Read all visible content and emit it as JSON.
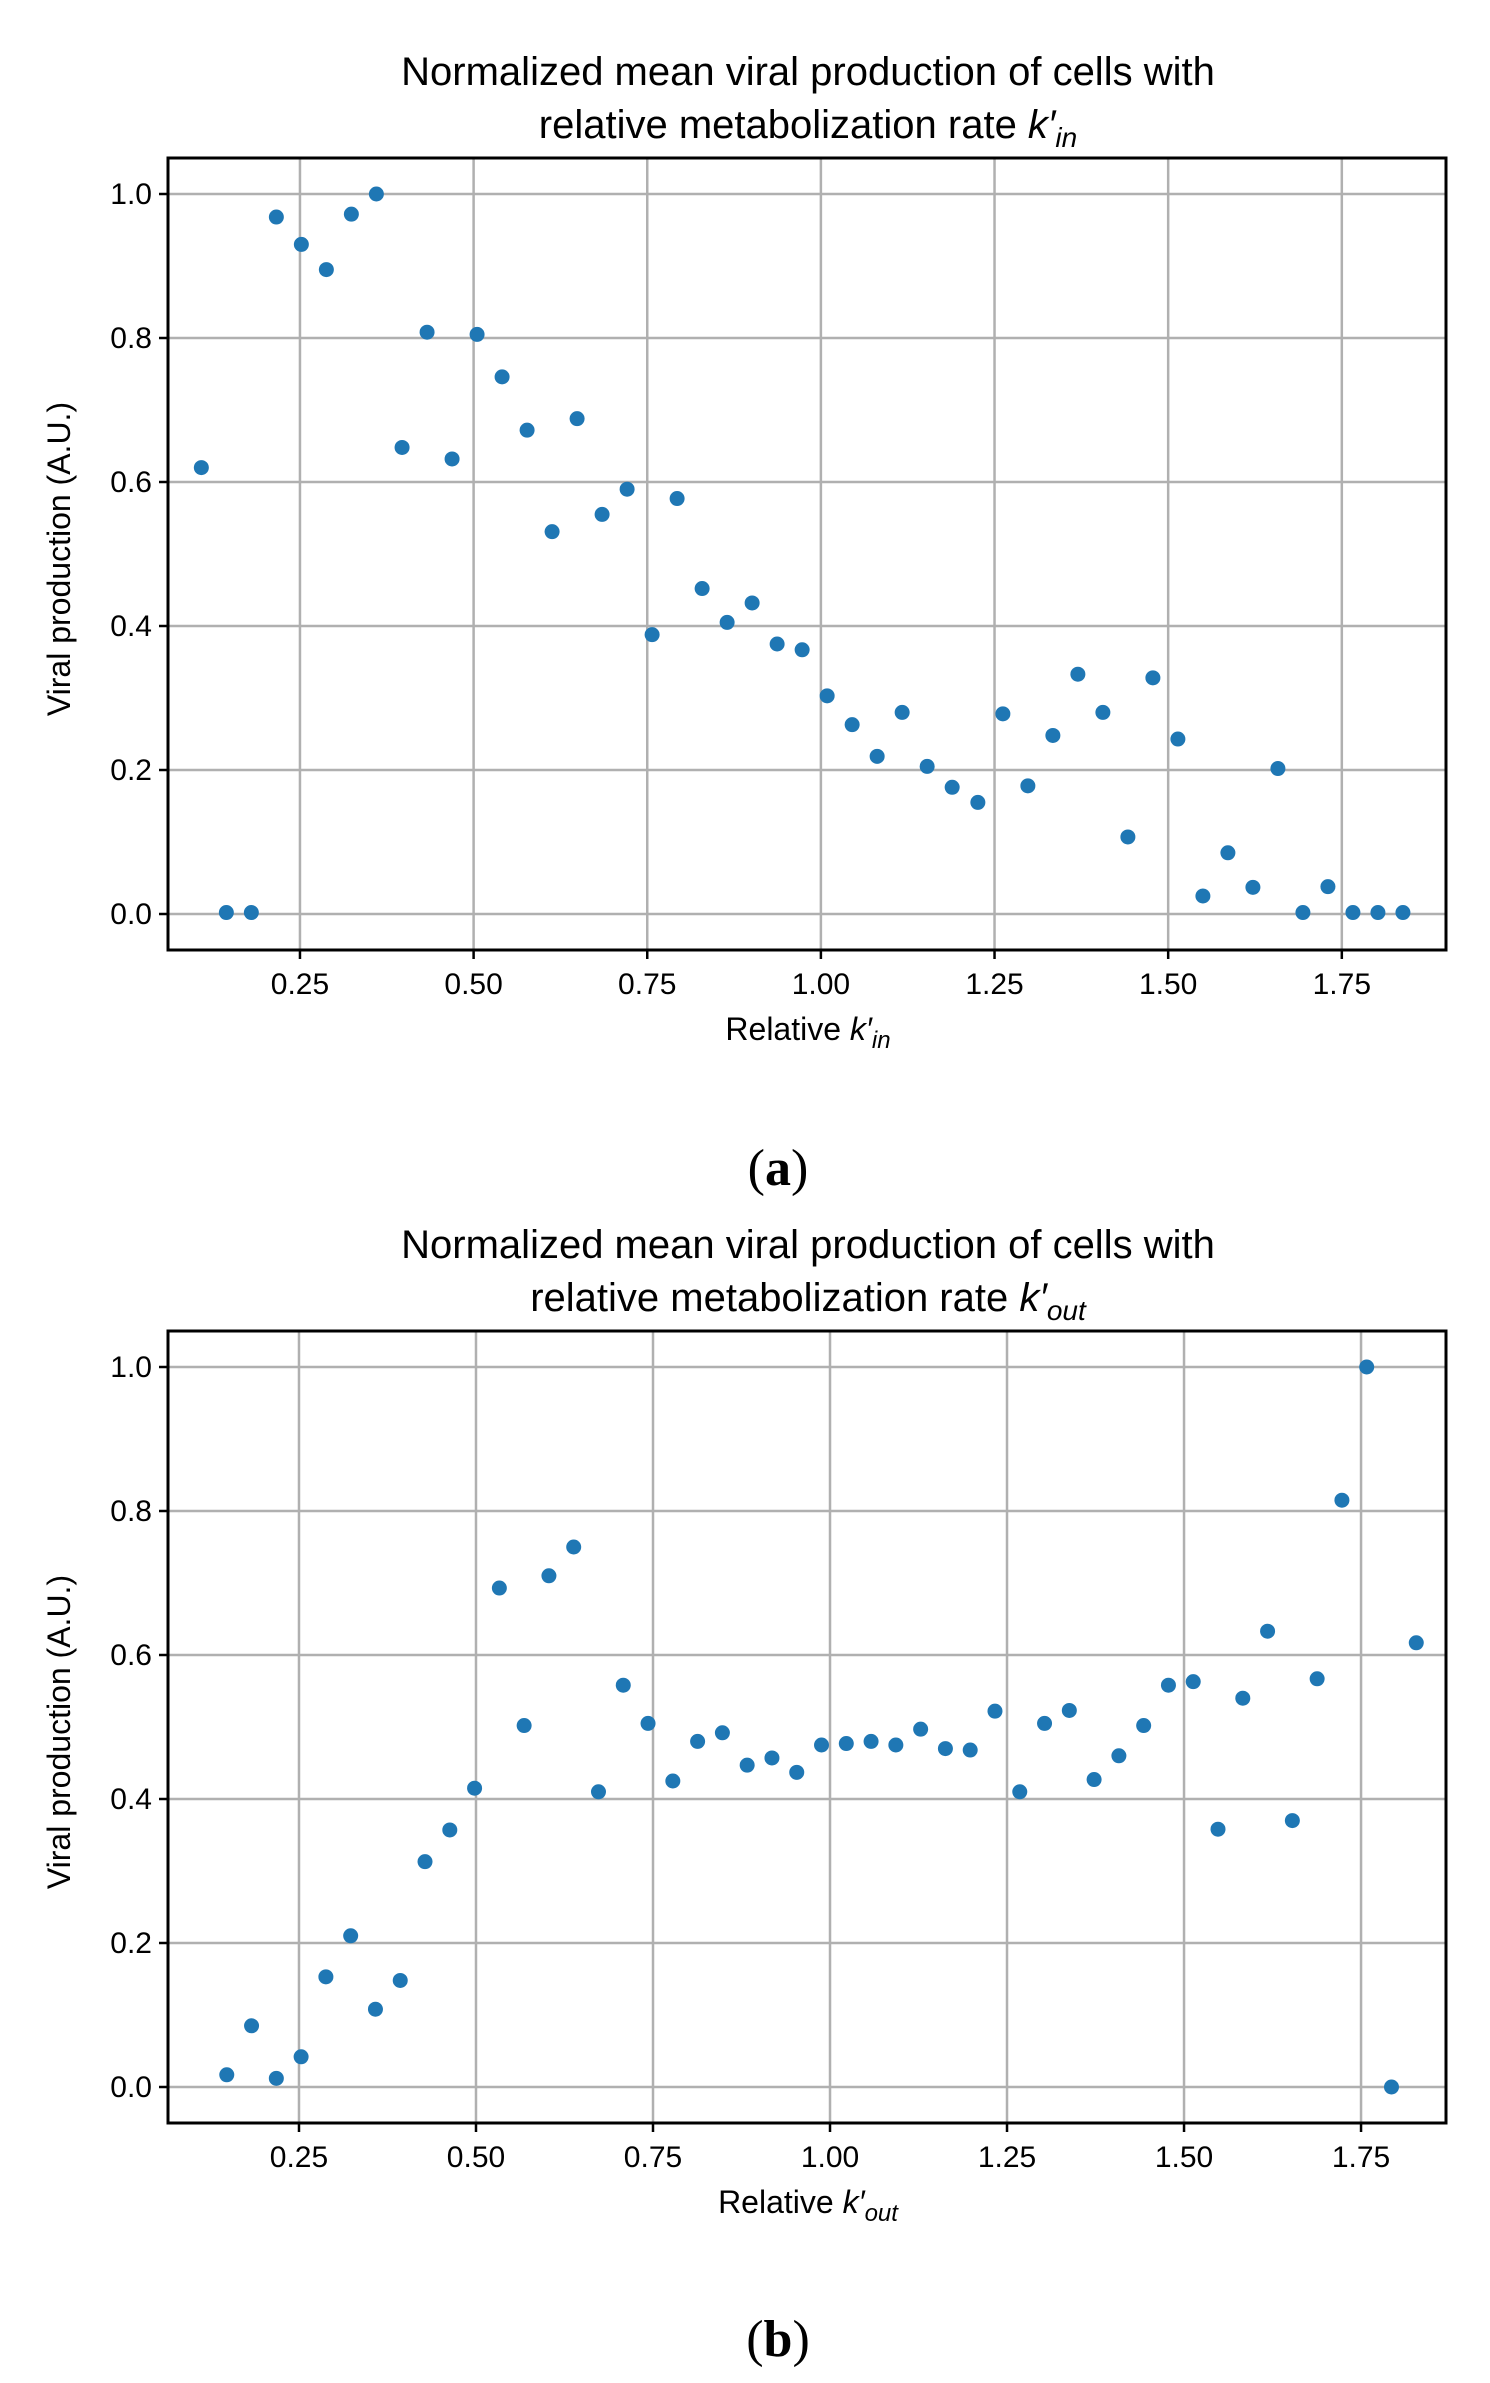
{
  "chart_data": [
    {
      "type": "scatter",
      "panel_label": "(a)",
      "title_line1": "Normalized mean viral production of cells with",
      "title_line2_prefix": "relative metabolization rate ",
      "title_symbol": "k′",
      "title_subscript": "in",
      "xlabel_prefix": "Relative ",
      "xlabel_symbol": "k′",
      "xlabel_subscript": "in",
      "ylabel": "Viral production (A.U.)",
      "xlim": [
        0.06,
        1.9
      ],
      "ylim": [
        -0.05,
        1.05
      ],
      "xticks": [
        0.25,
        0.5,
        0.75,
        1.0,
        1.25,
        1.5,
        1.75
      ],
      "xtick_labels": [
        "0.25",
        "0.50",
        "0.75",
        "1.00",
        "1.25",
        "1.50",
        "1.75"
      ],
      "yticks": [
        0.0,
        0.2,
        0.4,
        0.6,
        0.8,
        1.0
      ],
      "ytick_labels": [
        "0.0",
        "0.2",
        "0.4",
        "0.6",
        "0.8",
        "1.0"
      ],
      "grid": true,
      "color": "#1f77b4",
      "x": [
        0.108,
        0.144,
        0.18,
        0.216,
        0.252,
        0.288,
        0.324,
        0.36,
        0.397,
        0.433,
        0.469,
        0.505,
        0.541,
        0.577,
        0.613,
        0.649,
        0.685,
        0.721,
        0.757,
        0.793,
        0.829,
        0.865,
        0.901,
        0.937,
        0.973,
        1.009,
        1.045,
        1.081,
        1.117,
        1.153,
        1.189,
        1.226,
        1.262,
        1.298,
        1.334,
        1.37,
        1.406,
        1.442,
        1.478,
        1.514,
        1.55,
        1.586,
        1.622,
        1.658,
        1.694,
        1.73,
        1.766,
        1.802,
        1.838
      ],
      "y": [
        0.62,
        0.002,
        0.002,
        0.968,
        0.93,
        0.895,
        0.972,
        1.0,
        0.648,
        0.808,
        0.632,
        0.805,
        0.746,
        0.672,
        0.531,
        0.688,
        0.555,
        0.59,
        0.388,
        0.577,
        0.452,
        0.405,
        0.432,
        0.375,
        0.367,
        0.303,
        0.263,
        0.219,
        0.28,
        0.205,
        0.176,
        0.155,
        0.278,
        0.178,
        0.248,
        0.333,
        0.28,
        0.107,
        0.328,
        0.243,
        0.025,
        0.085,
        0.037,
        0.202,
        0.002,
        0.038,
        0.002,
        0.002,
        0.002
      ]
    },
    {
      "type": "scatter",
      "panel_label": "(b)",
      "title_line1": "Normalized mean viral production of cells with",
      "title_line2_prefix": "relative metabolization rate ",
      "title_symbol": "k′",
      "title_subscript": "out",
      "xlabel_prefix": "Relative ",
      "xlabel_symbol": "k′",
      "xlabel_subscript": "out",
      "ylabel": "Viral production (A.U.)",
      "xlim": [
        0.065,
        1.87
      ],
      "ylim": [
        -0.05,
        1.05
      ],
      "xticks": [
        0.25,
        0.5,
        0.75,
        1.0,
        1.25,
        1.5,
        1.75
      ],
      "xtick_labels": [
        "0.25",
        "0.50",
        "0.75",
        "1.00",
        "1.25",
        "1.50",
        "1.75"
      ],
      "yticks": [
        0.0,
        0.2,
        0.4,
        0.6,
        0.8,
        1.0
      ],
      "ytick_labels": [
        "0.0",
        "0.2",
        "0.4",
        "0.6",
        "0.8",
        "1.0"
      ],
      "grid": true,
      "color": "#1f77b4",
      "x": [
        0.148,
        0.183,
        0.218,
        0.253,
        0.288,
        0.323,
        0.358,
        0.393,
        0.428,
        0.463,
        0.498,
        0.533,
        0.568,
        0.603,
        0.638,
        0.673,
        0.708,
        0.743,
        0.778,
        0.813,
        0.848,
        0.883,
        0.918,
        0.953,
        0.988,
        1.023,
        1.058,
        1.093,
        1.128,
        1.163,
        1.198,
        1.233,
        1.268,
        1.303,
        1.338,
        1.373,
        1.408,
        1.443,
        1.478,
        1.513,
        1.548,
        1.583,
        1.618,
        1.653,
        1.688,
        1.723,
        1.758,
        1.793,
        1.828
      ],
      "y": [
        0.017,
        0.085,
        0.012,
        0.042,
        0.153,
        0.21,
        0.108,
        0.148,
        0.313,
        0.357,
        0.415,
        0.693,
        0.502,
        0.71,
        0.75,
        0.41,
        0.558,
        0.505,
        0.425,
        0.48,
        0.492,
        0.447,
        0.457,
        0.437,
        0.475,
        0.477,
        0.48,
        0.475,
        0.497,
        0.47,
        0.468,
        0.522,
        0.41,
        0.505,
        0.523,
        0.427,
        0.46,
        0.502,
        0.558,
        0.563,
        0.358,
        0.54,
        0.633,
        0.37,
        0.567,
        0.815,
        1.0,
        0.0,
        0.617
      ]
    }
  ]
}
